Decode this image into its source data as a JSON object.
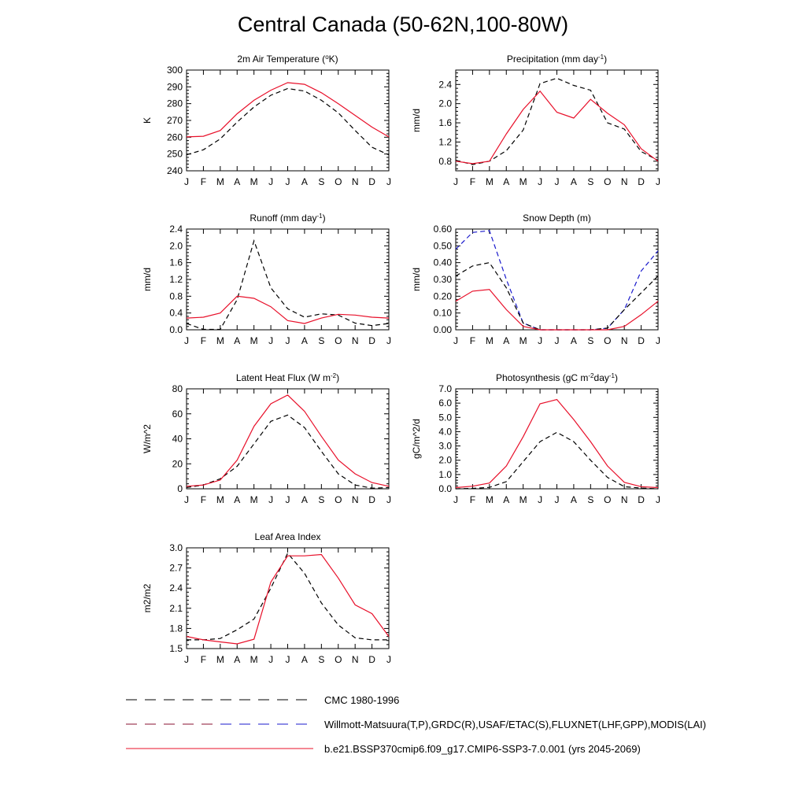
{
  "title": "Central Canada (50-62N,100-80W)",
  "months": [
    "J",
    "F",
    "M",
    "A",
    "M",
    "J",
    "J",
    "A",
    "S",
    "O",
    "N",
    "D",
    "J"
  ],
  "legend": [
    {
      "label": "CMC 1980-1996",
      "style": "cmc"
    },
    {
      "label": "Willmott-Matsuura(T,P),GRDC(R),USAF/ETAC(S),FLUXNET(LHF,GPP),MODIS(LAI)",
      "style": "obs"
    },
    {
      "label": "b.e21.BSSP370cmip6.f09_g17.CMIP6-SSP3-7.0.001 (yrs 2045-2069)",
      "style": "model"
    }
  ],
  "chart_data": [
    {
      "type": "line",
      "title": "2m Air Temperature (°K)",
      "title_main": "2m Air Temperature (",
      "title_sup": "o",
      "title_tail": "K)",
      "ylabel": "K",
      "ylim": [
        240,
        300
      ],
      "yticks": [
        "240",
        "250",
        "260",
        "270",
        "280",
        "290",
        "300"
      ],
      "x": [
        "J",
        "F",
        "M",
        "A",
        "M",
        "J",
        "J",
        "A",
        "S",
        "O",
        "N",
        "D",
        "J"
      ],
      "series": [
        {
          "style": "obs",
          "values": [
            249.5,
            252.5,
            259,
            269,
            278,
            285,
            289,
            287.5,
            282,
            274.5,
            264,
            254,
            249.5
          ]
        },
        {
          "style": "model",
          "values": [
            260.2,
            260.6,
            264,
            274,
            282,
            288,
            292.5,
            291.5,
            286.5,
            280,
            273,
            266,
            260.2
          ]
        }
      ]
    },
    {
      "type": "line",
      "title": "Precipitation (mm day-1)",
      "title_main": "Precipitation (mm day",
      "title_sup": "-1",
      "title_tail": ")",
      "ylabel": "mm/d",
      "ylim": [
        0.6,
        2.7
      ],
      "yticks": [
        "0.8",
        "1.2",
        "1.6",
        "2.0",
        "2.4"
      ],
      "x": [
        "J",
        "F",
        "M",
        "A",
        "M",
        "J",
        "J",
        "A",
        "S",
        "O",
        "N",
        "D",
        "J"
      ],
      "series": [
        {
          "style": "obs",
          "values": [
            0.82,
            0.73,
            0.8,
            1.02,
            1.45,
            2.42,
            2.53,
            2.38,
            2.28,
            1.6,
            1.47,
            1.0,
            0.82
          ]
        },
        {
          "style": "model",
          "values": [
            0.8,
            0.75,
            0.8,
            1.37,
            1.88,
            2.26,
            1.82,
            1.7,
            2.09,
            1.8,
            1.56,
            1.06,
            0.8
          ]
        }
      ]
    },
    {
      "type": "line",
      "title": "Runoff (mm day-1)",
      "title_main": "Runoff (mm day",
      "title_sup": "-1",
      "title_tail": ")",
      "ylabel": "mm/d",
      "ylim": [
        0,
        2.4
      ],
      "yticks": [
        "0.0",
        "0.4",
        "0.8",
        "1.2",
        "1.6",
        "2.0",
        "2.4"
      ],
      "x": [
        "J",
        "F",
        "M",
        "A",
        "M",
        "J",
        "J",
        "A",
        "S",
        "O",
        "N",
        "D",
        "J"
      ],
      "series": [
        {
          "style": "obs",
          "values": [
            0.15,
            0.01,
            0.01,
            0.72,
            2.12,
            1.0,
            0.5,
            0.3,
            0.38,
            0.35,
            0.16,
            0.1,
            0.15
          ]
        },
        {
          "style": "model",
          "values": [
            0.28,
            0.3,
            0.4,
            0.8,
            0.75,
            0.55,
            0.22,
            0.15,
            0.28,
            0.37,
            0.35,
            0.3,
            0.28
          ]
        }
      ]
    },
    {
      "type": "line",
      "title": "Snow Depth (m)",
      "title_main": "Snow Depth (m)",
      "title_sup": "",
      "title_tail": "",
      "ylabel": "mm/d",
      "ylim": [
        0,
        0.6
      ],
      "yticks": [
        "0.00",
        "0.10",
        "0.20",
        "0.30",
        "0.40",
        "0.50",
        "0.60"
      ],
      "x": [
        "J",
        "F",
        "M",
        "A",
        "M",
        "J",
        "J",
        "A",
        "S",
        "O",
        "N",
        "D",
        "J"
      ],
      "series": [
        {
          "style": "cmc",
          "values": [
            0.48,
            0.58,
            0.59,
            0.3,
            0.04,
            0.0,
            0.0,
            0.0,
            0.0,
            0.01,
            0.12,
            0.35,
            0.47
          ]
        },
        {
          "style": "obs",
          "values": [
            0.32,
            0.38,
            0.4,
            0.25,
            0.04,
            0.0,
            0.0,
            0.0,
            0.0,
            0.01,
            0.12,
            0.22,
            0.32
          ]
        },
        {
          "style": "model",
          "values": [
            0.17,
            0.23,
            0.24,
            0.12,
            0.02,
            0.0,
            0.0,
            0.0,
            0.0,
            0.0,
            0.02,
            0.09,
            0.17
          ]
        }
      ]
    },
    {
      "type": "line",
      "title": "Latent Heat Flux (W m-2)",
      "title_main": "Latent Heat Flux (W m",
      "title_sup": "-2",
      "title_tail": ")",
      "ylabel": "W/m^2",
      "ylim": [
        0,
        80
      ],
      "yticks": [
        "0",
        "20",
        "40",
        "60",
        "80"
      ],
      "x": [
        "J",
        "F",
        "M",
        "A",
        "M",
        "J",
        "J",
        "A",
        "S",
        "O",
        "N",
        "D",
        "J"
      ],
      "series": [
        {
          "style": "obs",
          "values": [
            1,
            3,
            8,
            18,
            36,
            54,
            59,
            49,
            30,
            12,
            3,
            0.5,
            1
          ]
        },
        {
          "style": "model",
          "values": [
            2,
            3,
            7,
            23,
            50,
            68,
            75,
            62,
            42,
            23,
            12,
            5,
            2
          ]
        }
      ]
    },
    {
      "type": "line",
      "title": "Photosynthesis (gC m-2day-1)",
      "title_main": "Photosynthesis (gC m",
      "title_sup": "-2",
      "title_tail": "day",
      "title_sup2": "-1",
      "title_tail2": ")",
      "ylabel": "gC/m^2/d",
      "ylim": [
        0,
        7
      ],
      "yticks": [
        "0.0",
        "1.0",
        "2.0",
        "3.0",
        "4.0",
        "5.0",
        "6.0",
        "7.0"
      ],
      "x": [
        "J",
        "F",
        "M",
        "A",
        "M",
        "J",
        "J",
        "A",
        "S",
        "O",
        "N",
        "D",
        "J"
      ],
      "series": [
        {
          "style": "obs",
          "values": [
            0.0,
            0.03,
            0.1,
            0.5,
            1.9,
            3.3,
            3.95,
            3.3,
            2.0,
            0.8,
            0.15,
            0.05,
            0.0
          ]
        },
        {
          "style": "model",
          "values": [
            0.08,
            0.18,
            0.4,
            1.6,
            3.65,
            5.95,
            6.25,
            4.85,
            3.3,
            1.6,
            0.45,
            0.15,
            0.08
          ]
        }
      ]
    },
    {
      "type": "line",
      "title": "Leaf Area Index",
      "title_main": "Leaf Area Index",
      "title_sup": "",
      "title_tail": "",
      "ylabel": "m2/m2",
      "ylim": [
        1.5,
        3.0
      ],
      "yticks": [
        "1.5",
        "1.8",
        "2.1",
        "2.4",
        "2.7",
        "3.0"
      ],
      "x": [
        "J",
        "F",
        "M",
        "A",
        "M",
        "J",
        "J",
        "A",
        "S",
        "O",
        "N",
        "D",
        "J"
      ],
      "series": [
        {
          "style": "obs",
          "values": [
            1.63,
            1.63,
            1.65,
            1.78,
            1.94,
            2.4,
            2.92,
            2.62,
            2.18,
            1.85,
            1.66,
            1.63,
            1.63
          ]
        },
        {
          "style": "model",
          "values": [
            1.68,
            1.63,
            1.6,
            1.57,
            1.64,
            2.49,
            2.88,
            2.88,
            2.9,
            2.55,
            2.15,
            2.02,
            1.68
          ]
        }
      ]
    }
  ]
}
